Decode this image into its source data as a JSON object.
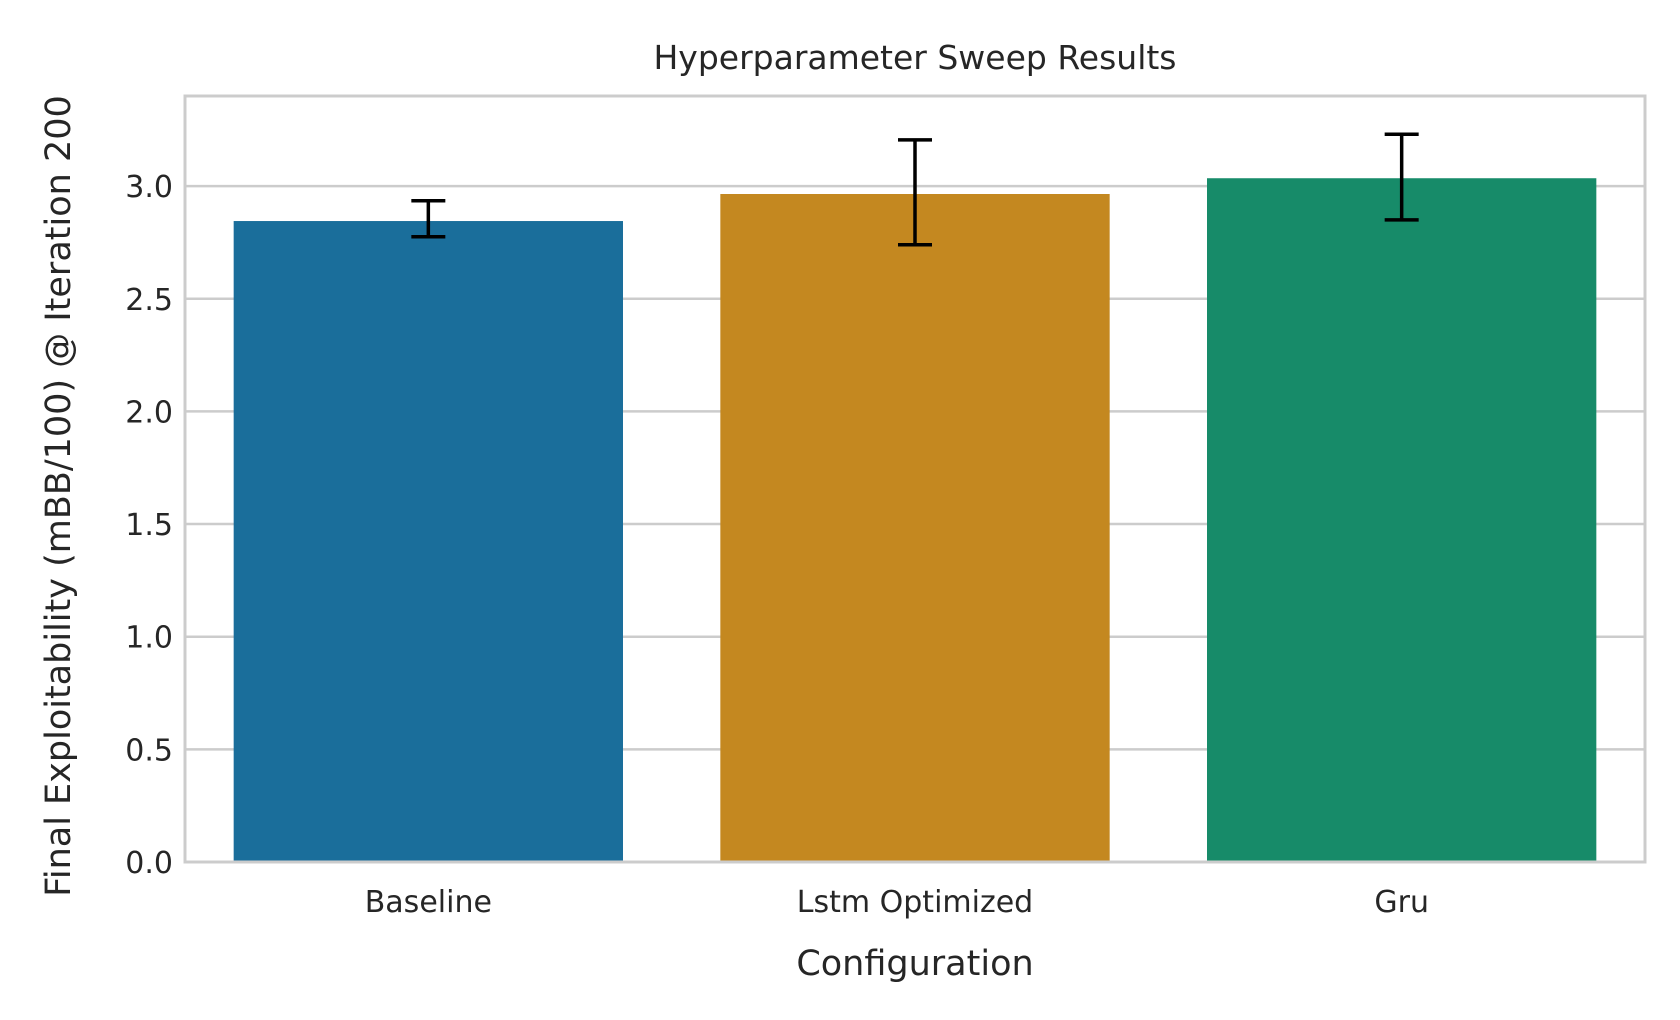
{
  "chart_data": {
    "type": "bar",
    "title": "Hyperparameter Sweep Results",
    "xlabel": "Configuration",
    "ylabel": "Final Exploitability (mBB/100) @ Iteration 200",
    "categories": [
      "Baseline",
      "Lstm Optimized",
      "Gru"
    ],
    "values": [
      2.845,
      2.965,
      3.035
    ],
    "error_low": [
      2.775,
      2.74,
      2.85
    ],
    "error_high": [
      2.935,
      3.205,
      3.23
    ],
    "colors": [
      "#1a6e9b",
      "#c48820",
      "#178b69"
    ],
    "ylim": [
      0,
      3.4
    ],
    "yticks": [
      0.0,
      0.5,
      1.0,
      1.5,
      2.0,
      2.5,
      3.0
    ],
    "ytick_labels": [
      "0.0",
      "0.5",
      "1.0",
      "1.5",
      "2.0",
      "2.5",
      "3.0"
    ],
    "grid": true
  }
}
